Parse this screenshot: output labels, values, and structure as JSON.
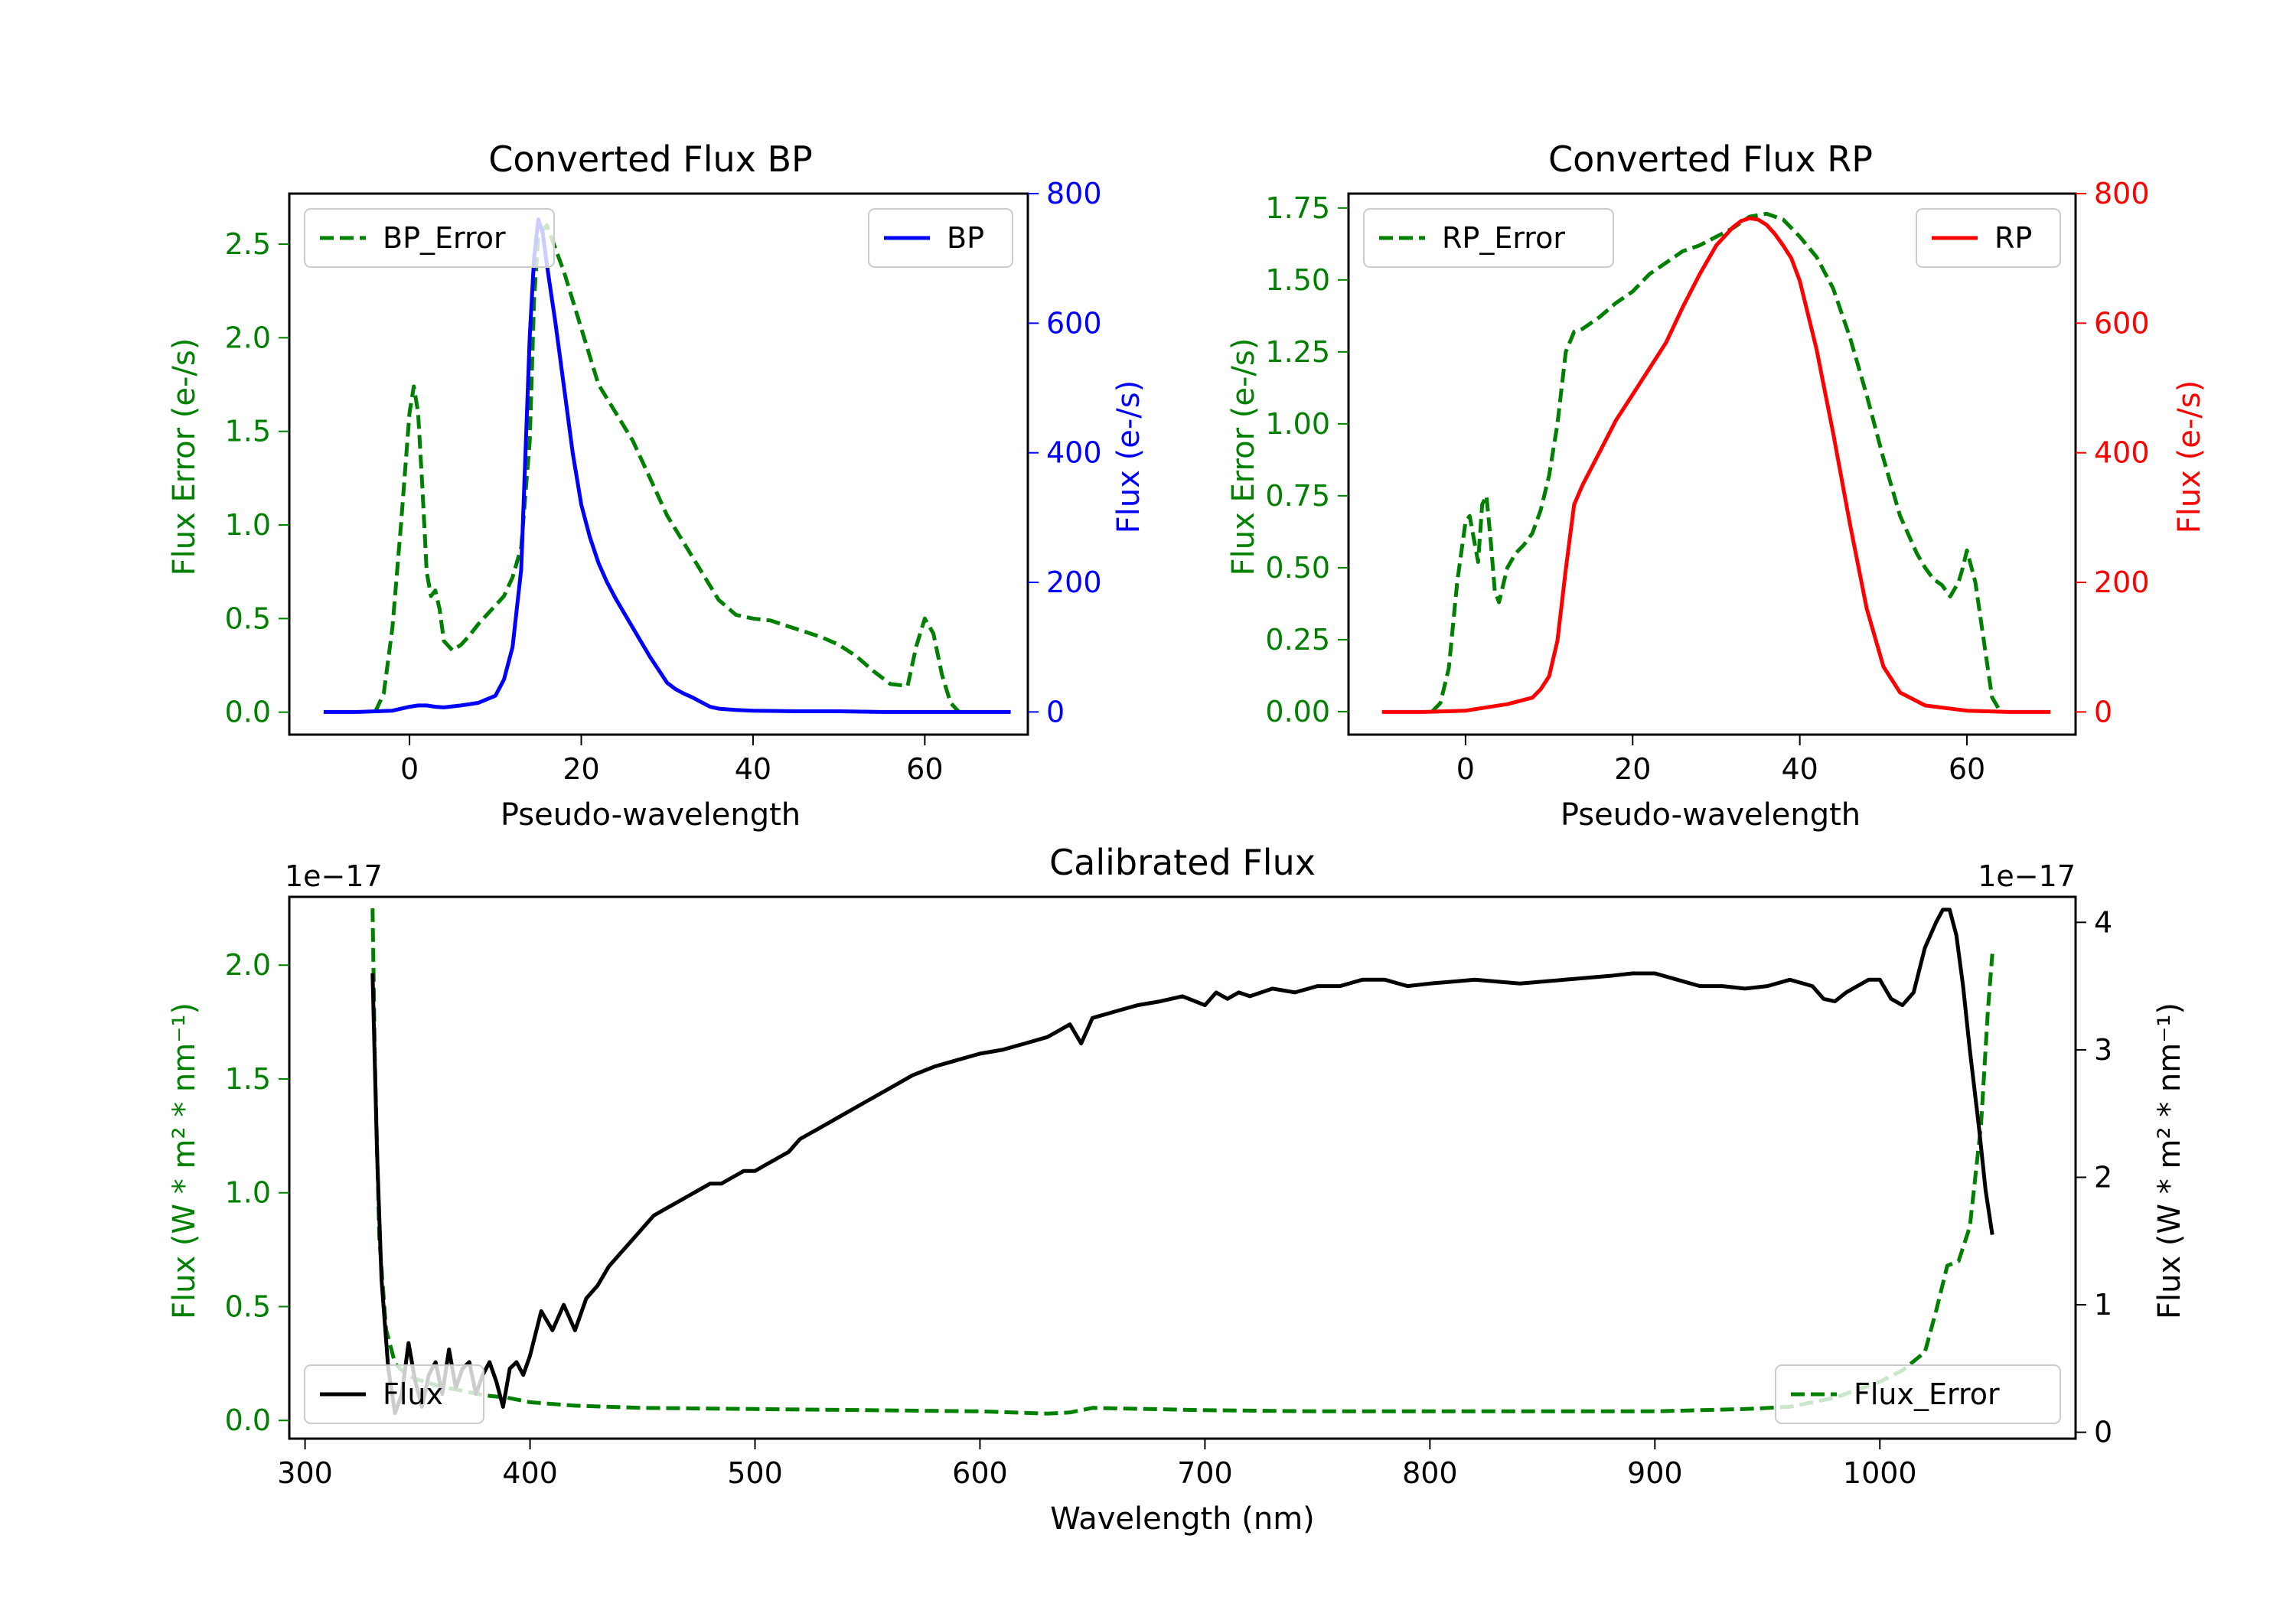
{
  "chart_data": [
    {
      "type": "line",
      "title": "Converted Flux BP",
      "xlabel": "Pseudo-wavelength",
      "ylabel_left": "Flux Error (e-/s)",
      "ylabel_right": "Flux (e-/s)",
      "xlim": [
        -14,
        72
      ],
      "ylim_left": [
        -0.12,
        2.77
      ],
      "ylim_right": [
        -35,
        800
      ],
      "xticks": [
        0,
        20,
        40,
        60
      ],
      "yticks_left": [
        0.0,
        0.5,
        1.0,
        1.5,
        2.0,
        2.5
      ],
      "yticks_right": [
        0,
        200,
        400,
        600,
        800
      ],
      "series": [
        {
          "name": "BP_Error",
          "axis": "left",
          "color": "#008000",
          "style": "dashed",
          "x": [
            -4,
            -3,
            -2,
            -1,
            0,
            0.5,
            1,
            1.5,
            2,
            2.5,
            3,
            3.5,
            4,
            5,
            6,
            7,
            8,
            9,
            10,
            11,
            12,
            13,
            14,
            14.5,
            15,
            16,
            18,
            20,
            22,
            24,
            26,
            28,
            30,
            32,
            34,
            36,
            38,
            40,
            42,
            44,
            46,
            48,
            50,
            52,
            54,
            56,
            58,
            59,
            60,
            61,
            62,
            63,
            64
          ],
          "values": [
            0.0,
            0.1,
            0.45,
            1.0,
            1.6,
            1.74,
            1.6,
            1.2,
            0.75,
            0.62,
            0.65,
            0.55,
            0.38,
            0.33,
            0.36,
            0.41,
            0.47,
            0.52,
            0.57,
            0.62,
            0.72,
            0.88,
            1.45,
            2.2,
            2.55,
            2.6,
            2.35,
            2.05,
            1.75,
            1.6,
            1.45,
            1.25,
            1.05,
            0.9,
            0.75,
            0.6,
            0.52,
            0.5,
            0.49,
            0.46,
            0.43,
            0.4,
            0.36,
            0.3,
            0.22,
            0.15,
            0.14,
            0.35,
            0.5,
            0.42,
            0.2,
            0.05,
            0.0
          ]
        },
        {
          "name": "BP",
          "axis": "right",
          "color": "#0000ff",
          "style": "solid",
          "x": [
            -10,
            -6,
            -2,
            0,
            1,
            2,
            3,
            4,
            6,
            8,
            10,
            11,
            12,
            13,
            13.5,
            14,
            14.5,
            15,
            15.5,
            16,
            17,
            18,
            19,
            20,
            21,
            22,
            23,
            24,
            26,
            28,
            30,
            31,
            32,
            33,
            34,
            35,
            36,
            38,
            40,
            45,
            50,
            55,
            60,
            65,
            70
          ],
          "values": [
            0,
            0,
            2,
            8,
            10,
            10,
            8,
            7,
            10,
            14,
            25,
            50,
            100,
            220,
            400,
            580,
            700,
            760,
            740,
            690,
            600,
            500,
            400,
            320,
            270,
            230,
            200,
            175,
            130,
            85,
            45,
            35,
            28,
            22,
            15,
            8,
            5,
            3,
            2,
            1,
            1,
            0,
            0,
            0,
            0
          ]
        }
      ],
      "legend": [
        {
          "label": "BP_Error",
          "position": "upper-left"
        },
        {
          "label": "BP",
          "position": "upper-right"
        }
      ]
    },
    {
      "type": "line",
      "title": "Converted Flux RP",
      "xlabel": "Pseudo-wavelength",
      "ylabel_left": "Flux Error (e-/s)",
      "ylabel_right": "Flux (e-/s)",
      "xlim": [
        -14,
        73
      ],
      "ylim_left": [
        -0.08,
        1.8
      ],
      "ylim_right": [
        -35,
        800
      ],
      "xticks": [
        0,
        20,
        40,
        60
      ],
      "yticks_left": [
        0.0,
        0.25,
        0.5,
        0.75,
        1.0,
        1.25,
        1.5,
        1.75
      ],
      "yticks_right": [
        0,
        200,
        400,
        600,
        800
      ],
      "series": [
        {
          "name": "RP_Error",
          "axis": "left",
          "color": "#008000",
          "style": "dashed",
          "x": [
            -4,
            -3,
            -2,
            -1,
            0,
            0.5,
            1,
            1.5,
            2,
            2.5,
            3,
            3.5,
            4,
            5,
            6,
            7,
            8,
            9,
            10,
            11,
            12,
            13,
            14,
            16,
            18,
            20,
            22,
            24,
            26,
            28,
            30,
            32,
            34,
            36,
            38,
            40,
            42,
            44,
            46,
            48,
            50,
            52,
            54,
            55,
            56,
            57,
            58,
            59,
            59.5,
            60,
            61,
            62,
            63,
            64
          ],
          "values": [
            0.0,
            0.03,
            0.15,
            0.45,
            0.66,
            0.68,
            0.6,
            0.52,
            0.72,
            0.75,
            0.6,
            0.42,
            0.38,
            0.5,
            0.55,
            0.58,
            0.62,
            0.7,
            0.82,
            1.0,
            1.25,
            1.32,
            1.33,
            1.37,
            1.42,
            1.46,
            1.52,
            1.56,
            1.6,
            1.62,
            1.65,
            1.68,
            1.72,
            1.73,
            1.71,
            1.65,
            1.58,
            1.47,
            1.3,
            1.1,
            0.88,
            0.68,
            0.55,
            0.5,
            0.46,
            0.44,
            0.4,
            0.45,
            0.5,
            0.56,
            0.45,
            0.25,
            0.05,
            0.0
          ]
        },
        {
          "name": "RP",
          "axis": "right",
          "color": "#ff0000",
          "style": "solid",
          "x": [
            -10,
            -5,
            0,
            5,
            8,
            9,
            10,
            11,
            12,
            13,
            14,
            16,
            18,
            20,
            22,
            24,
            26,
            28,
            30,
            32,
            33,
            34,
            35,
            36,
            37,
            38,
            39,
            40,
            42,
            44,
            46,
            48,
            50,
            52,
            55,
            60,
            65,
            70
          ],
          "values": [
            0,
            0,
            2,
            12,
            22,
            35,
            55,
            110,
            220,
            320,
            350,
            400,
            450,
            490,
            530,
            570,
            625,
            675,
            720,
            748,
            758,
            762,
            760,
            752,
            738,
            720,
            700,
            665,
            560,
            430,
            290,
            160,
            70,
            30,
            10,
            2,
            0,
            0
          ]
        }
      ],
      "legend": [
        {
          "label": "RP_Error",
          "position": "upper-left"
        },
        {
          "label": "RP",
          "position": "upper-right"
        }
      ]
    },
    {
      "type": "line",
      "title": "Calibrated Flux",
      "xlabel": "Wavelength (nm)",
      "ylabel_left": "Flux (W * m² * nm⁻¹)",
      "ylabel_right": "Flux (W * m² * nm⁻¹)",
      "offset_left": "1e−17",
      "offset_right": "1e−17",
      "xlim": [
        293,
        1087
      ],
      "ylim_left": [
        -0.08,
        2.3
      ],
      "ylim_right": [
        -0.05,
        4.2
      ],
      "xticks": [
        300,
        400,
        500,
        600,
        700,
        800,
        900,
        1000
      ],
      "yticks_left": [
        0.0,
        0.5,
        1.0,
        1.5,
        2.0
      ],
      "yticks_right": [
        0,
        1,
        2,
        3,
        4
      ],
      "series": [
        {
          "name": "Flux_Error",
          "axis": "left",
          "color": "#008000",
          "style": "dashed",
          "x": [
            330,
            331,
            333,
            336,
            340,
            345,
            350,
            360,
            370,
            380,
            390,
            400,
            420,
            450,
            500,
            550,
            600,
            630,
            640,
            650,
            700,
            750,
            800,
            850,
            900,
            940,
            960,
            980,
            1000,
            1010,
            1020,
            1025,
            1030,
            1035,
            1040,
            1045,
            1048,
            1050
          ],
          "values": [
            2.25,
            1.6,
            0.8,
            0.4,
            0.25,
            0.2,
            0.18,
            0.15,
            0.13,
            0.11,
            0.1,
            0.08,
            0.065,
            0.055,
            0.05,
            0.045,
            0.04,
            0.03,
            0.035,
            0.055,
            0.045,
            0.04,
            0.04,
            0.04,
            0.04,
            0.05,
            0.06,
            0.1,
            0.17,
            0.22,
            0.3,
            0.48,
            0.68,
            0.7,
            0.85,
            1.3,
            1.8,
            2.05
          ]
        },
        {
          "name": "Flux",
          "axis": "right",
          "color": "#000000",
          "style": "solid",
          "x": [
            330,
            332,
            334,
            337,
            340,
            343,
            346,
            349,
            352,
            355,
            358,
            361,
            364,
            367,
            370,
            373,
            376,
            379,
            382,
            385,
            388,
            391,
            394,
            397,
            400,
            405,
            410,
            415,
            420,
            425,
            430,
            435,
            440,
            445,
            450,
            455,
            460,
            465,
            470,
            475,
            480,
            485,
            490,
            495,
            500,
            505,
            510,
            515,
            520,
            530,
            540,
            550,
            560,
            570,
            580,
            590,
            600,
            610,
            620,
            630,
            635,
            640,
            645,
            650,
            660,
            670,
            680,
            690,
            700,
            705,
            710,
            715,
            720,
            730,
            740,
            750,
            760,
            770,
            780,
            790,
            800,
            820,
            840,
            860,
            880,
            890,
            900,
            910,
            920,
            930,
            940,
            950,
            960,
            970,
            975,
            980,
            985,
            990,
            995,
            1000,
            1005,
            1010,
            1015,
            1020,
            1025,
            1028,
            1031,
            1034,
            1037,
            1040,
            1044,
            1047,
            1050
          ],
          "values": [
            3.6,
            2.2,
            1.2,
            0.5,
            0.15,
            0.3,
            0.7,
            0.4,
            0.2,
            0.45,
            0.55,
            0.3,
            0.65,
            0.35,
            0.5,
            0.55,
            0.3,
            0.45,
            0.55,
            0.4,
            0.2,
            0.5,
            0.55,
            0.45,
            0.6,
            0.95,
            0.8,
            1.0,
            0.8,
            1.05,
            1.15,
            1.3,
            1.4,
            1.5,
            1.6,
            1.7,
            1.75,
            1.8,
            1.85,
            1.9,
            1.95,
            1.95,
            2.0,
            2.05,
            2.05,
            2.1,
            2.15,
            2.2,
            2.3,
            2.4,
            2.5,
            2.6,
            2.7,
            2.8,
            2.87,
            2.92,
            2.97,
            3.0,
            3.05,
            3.1,
            3.15,
            3.2,
            3.05,
            3.25,
            3.3,
            3.35,
            3.38,
            3.42,
            3.35,
            3.45,
            3.4,
            3.45,
            3.42,
            3.48,
            3.45,
            3.5,
            3.5,
            3.55,
            3.55,
            3.5,
            3.52,
            3.55,
            3.52,
            3.55,
            3.58,
            3.6,
            3.6,
            3.55,
            3.5,
            3.5,
            3.48,
            3.5,
            3.55,
            3.5,
            3.4,
            3.38,
            3.45,
            3.5,
            3.55,
            3.55,
            3.4,
            3.35,
            3.45,
            3.8,
            4.0,
            4.1,
            4.1,
            3.9,
            3.5,
            3.0,
            2.4,
            1.9,
            1.55
          ]
        }
      ],
      "legend": [
        {
          "label": "Flux",
          "position": "lower-left"
        },
        {
          "label": "Flux_Error",
          "position": "lower-right"
        }
      ]
    }
  ]
}
